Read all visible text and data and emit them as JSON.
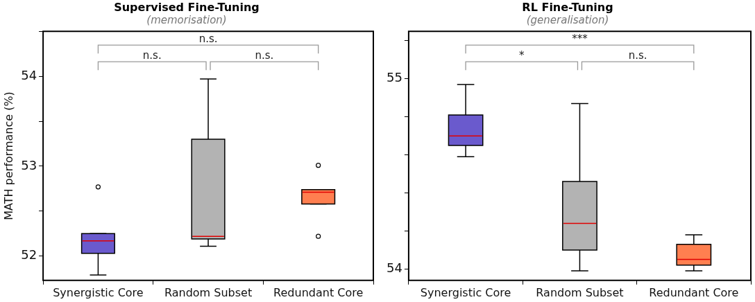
{
  "chart_data": [
    {
      "type": "box",
      "title": "Supervised Fine-Tuning",
      "subtitle": "(memorisation)",
      "ylabel": "MATH performance (%)",
      "categories": [
        "Synergistic Core",
        "Random Subset",
        "Redundant Core"
      ],
      "colors": [
        "#6a5acd",
        "#b3b3b3",
        "#ff7f50"
      ],
      "boxes": [
        {
          "low": 51.79,
          "q1": 52.03,
          "median": 52.17,
          "q3": 52.25,
          "high": 52.25,
          "outliers": [
            52.77
          ]
        },
        {
          "low": 52.11,
          "q1": 52.19,
          "median": 52.22,
          "q3": 53.3,
          "high": 53.97
        },
        {
          "low": 52.58,
          "q1": 52.58,
          "median": 52.71,
          "q3": 52.74,
          "high": 52.74,
          "outliers": [
            53.01,
            52.22
          ]
        }
      ],
      "ylim": [
        51.73,
        54.5
      ],
      "yticks": [
        52,
        {
          "value": 52.5,
          "label": null
        },
        53,
        {
          "value": 53.5,
          "label": null
        },
        54,
        {
          "value": 54.5,
          "label": null
        }
      ],
      "grid": false,
      "legend": false,
      "annotations": [
        "n.s.",
        "n.s.",
        "n.s."
      ]
    },
    {
      "type": "box",
      "title": "RL Fine-Tuning",
      "subtitle": "(generalisation)",
      "categories": [
        "Synergistic Core",
        "Random Subset",
        "Redundant Core"
      ],
      "colors": [
        "#6a5acd",
        "#b3b3b3",
        "#ff7f50"
      ],
      "boxes": [
        {
          "low": 54.59,
          "q1": 54.65,
          "median": 54.7,
          "q3": 54.81,
          "high": 54.97
        },
        {
          "low": 53.99,
          "q1": 54.1,
          "median": 54.24,
          "q3": 54.46,
          "high": 54.87
        },
        {
          "low": 53.99,
          "q1": 54.02,
          "median": 54.05,
          "q3": 54.13,
          "high": 54.18
        }
      ],
      "ylim": [
        53.94,
        55.25
      ],
      "yticks": [
        54,
        {
          "value": 54.2,
          "label": null
        },
        {
          "value": 54.4,
          "label": null
        },
        {
          "value": 54.6,
          "label": null
        },
        {
          "value": 54.8,
          "label": null
        },
        55,
        {
          "value": 55.2,
          "label": null
        }
      ],
      "grid": false,
      "legend": false,
      "annotations": [
        "***",
        "*",
        "n.s."
      ]
    }
  ]
}
